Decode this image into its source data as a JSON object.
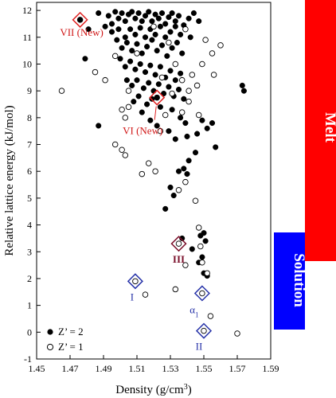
{
  "chart_data": {
    "type": "scatter",
    "xlabel": "Density (g/cm",
    "xlabel_sup": "3",
    "xlabel_end": ")",
    "ylabel": "Relative lattice energy (kJ/mol)",
    "xlim": [
      1.45,
      1.59
    ],
    "ylim": [
      -1,
      12.3
    ],
    "x_ticks": [
      "1.45",
      "1.47",
      "1.49",
      "1.51",
      "1.53",
      "1.55",
      "1.57",
      "1.59"
    ],
    "x_tick_values": [
      1.45,
      1.47,
      1.49,
      1.51,
      1.53,
      1.55,
      1.57,
      1.59
    ],
    "y_ticks": [
      "-1",
      "0",
      "1",
      "2",
      "3",
      "4",
      "5",
      "6",
      "7",
      "8",
      "9",
      "10",
      "11",
      "12"
    ],
    "y_tick_values": [
      -1,
      0,
      1,
      2,
      3,
      4,
      5,
      6,
      7,
      8,
      9,
      10,
      11,
      12
    ],
    "grid": false,
    "legend_position": "bottom-left",
    "series": [
      {
        "name": "Z’ = 2",
        "marker": "filled-circle",
        "points": [
          [
            1.487,
            11.9
          ],
          [
            1.493,
            11.8
          ],
          [
            1.497,
            11.95
          ],
          [
            1.499,
            11.7
          ],
          [
            1.501,
            11.9
          ],
          [
            1.503,
            11.6
          ],
          [
            1.505,
            11.85
          ],
          [
            1.507,
            11.95
          ],
          [
            1.509,
            11.7
          ],
          [
            1.511,
            11.9
          ],
          [
            1.513,
            11.6
          ],
          [
            1.515,
            11.8
          ],
          [
            1.517,
            11.95
          ],
          [
            1.519,
            11.6
          ],
          [
            1.521,
            11.85
          ],
          [
            1.523,
            11.7
          ],
          [
            1.525,
            11.9
          ],
          [
            1.527,
            11.5
          ],
          [
            1.529,
            11.75
          ],
          [
            1.531,
            11.9
          ],
          [
            1.533,
            11.6
          ],
          [
            1.535,
            11.8
          ],
          [
            1.538,
            11.45
          ],
          [
            1.541,
            11.7
          ],
          [
            1.544,
            11.9
          ],
          [
            1.547,
            11.6
          ],
          [
            1.491,
            11.4
          ],
          [
            1.495,
            11.2
          ],
          [
            1.499,
            11.3
          ],
          [
            1.503,
            11.0
          ],
          [
            1.506,
            11.3
          ],
          [
            1.509,
            11.1
          ],
          [
            1.512,
            11.35
          ],
          [
            1.515,
            11.0
          ],
          [
            1.518,
            11.3
          ],
          [
            1.521,
            11.1
          ],
          [
            1.524,
            11.4
          ],
          [
            1.527,
            11.0
          ],
          [
            1.53,
            11.2
          ],
          [
            1.533,
            11.4
          ],
          [
            1.536,
            11.1
          ],
          [
            1.539,
            11.3
          ],
          [
            1.498,
            10.9
          ],
          [
            1.501,
            10.6
          ],
          [
            1.504,
            10.8
          ],
          [
            1.507,
            10.5
          ],
          [
            1.51,
            10.75
          ],
          [
            1.513,
            10.4
          ],
          [
            1.516,
            10.65
          ],
          [
            1.519,
            10.9
          ],
          [
            1.522,
            10.5
          ],
          [
            1.525,
            10.7
          ],
          [
            1.528,
            10.3
          ],
          [
            1.531,
            10.6
          ],
          [
            1.534,
            10.8
          ],
          [
            1.537,
            10.4
          ],
          [
            1.5,
            10.2
          ],
          [
            1.503,
            9.9
          ],
          [
            1.506,
            10.1
          ],
          [
            1.509,
            9.8
          ],
          [
            1.512,
            10.0
          ],
          [
            1.515,
            9.7
          ],
          [
            1.518,
            9.95
          ],
          [
            1.521,
            9.6
          ],
          [
            1.524,
            9.9
          ],
          [
            1.527,
            9.5
          ],
          [
            1.53,
            9.75
          ],
          [
            1.533,
            9.4
          ],
          [
            1.536,
            9.65
          ],
          [
            1.504,
            9.4
          ],
          [
            1.507,
            9.2
          ],
          [
            1.51,
            9.4
          ],
          [
            1.514,
            9.1
          ],
          [
            1.517,
            9.3
          ],
          [
            1.52,
            9.0
          ],
          [
            1.523,
            9.25
          ],
          [
            1.526,
            8.9
          ],
          [
            1.529,
            9.15
          ],
          [
            1.532,
            8.8
          ],
          [
            1.535,
            9.05
          ],
          [
            1.538,
            8.7
          ],
          [
            1.508,
            8.6
          ],
          [
            1.511,
            8.8
          ],
          [
            1.516,
            8.5
          ],
          [
            1.519,
            8.7
          ],
          [
            1.524,
            8.4
          ],
          [
            1.531,
            8.3
          ],
          [
            1.536,
            8.0
          ],
          [
            1.539,
            7.8
          ],
          [
            1.513,
            8.2
          ],
          [
            1.518,
            7.9
          ],
          [
            1.522,
            7.7
          ],
          [
            1.529,
            7.5
          ],
          [
            1.533,
            7.2
          ],
          [
            1.54,
            7.3
          ],
          [
            1.546,
            7.4
          ],
          [
            1.549,
            7.9
          ],
          [
            1.552,
            7.6
          ],
          [
            1.555,
            7.8
          ],
          [
            1.557,
            6.9
          ],
          [
            1.545,
            6.7
          ],
          [
            1.541,
            6.4
          ],
          [
            1.538,
            6.1
          ],
          [
            1.535,
            6.0
          ],
          [
            1.54,
            5.9
          ],
          [
            1.53,
            5.4
          ],
          [
            1.532,
            5.1
          ],
          [
            1.527,
            4.6
          ],
          [
            1.537,
            3.5
          ],
          [
            1.543,
            3.1
          ],
          [
            1.548,
            3.6
          ],
          [
            1.55,
            3.7
          ],
          [
            1.551,
            3.4
          ],
          [
            1.547,
            2.6
          ],
          [
            1.549,
            2.8
          ],
          [
            1.55,
            2.2
          ],
          [
            1.552,
            2.1
          ],
          [
            1.479,
            10.2
          ],
          [
            1.481,
            11.3
          ],
          [
            1.573,
            9.2
          ],
          [
            1.574,
            9.0
          ],
          [
            1.487,
            7.7
          ],
          [
            1.495,
            11.5
          ],
          [
            1.542,
            11.0
          ]
        ]
      },
      {
        "name": "Z’ = 1",
        "marker": "open-circle",
        "points": [
          [
            1.465,
            9.0
          ],
          [
            1.485,
            9.7
          ],
          [
            1.491,
            9.4
          ],
          [
            1.497,
            10.3
          ],
          [
            1.501,
            8.3
          ],
          [
            1.503,
            8.0
          ],
          [
            1.505,
            8.4
          ],
          [
            1.497,
            7.0
          ],
          [
            1.501,
            6.8
          ],
          [
            1.503,
            6.6
          ],
          [
            1.517,
            6.3
          ],
          [
            1.521,
            6.0
          ],
          [
            1.513,
            5.9
          ],
          [
            1.535,
            5.3
          ],
          [
            1.539,
            5.6
          ],
          [
            1.545,
            4.9
          ],
          [
            1.537,
            8.2
          ],
          [
            1.541,
            8.6
          ],
          [
            1.543,
            9.6
          ],
          [
            1.541,
            9.0
          ],
          [
            1.546,
            9.2
          ],
          [
            1.549,
            10.0
          ],
          [
            1.551,
            10.9
          ],
          [
            1.555,
            10.4
          ],
          [
            1.539,
            11.3
          ],
          [
            1.537,
            9.4
          ],
          [
            1.531,
            8.9
          ],
          [
            1.547,
            8.1
          ],
          [
            1.56,
            10.7
          ],
          [
            1.556,
            9.6
          ],
          [
            1.547,
            3.9
          ],
          [
            1.548,
            3.2
          ],
          [
            1.549,
            2.6
          ],
          [
            1.539,
            2.5
          ],
          [
            1.552,
            2.2
          ],
          [
            1.554,
            0.6
          ],
          [
            1.57,
            -0.05
          ],
          [
            1.533,
            1.6
          ],
          [
            1.515,
            1.4
          ],
          [
            1.524,
            7.5
          ],
          [
            1.527,
            8.1
          ],
          [
            1.505,
            9.0
          ],
          [
            1.51,
            10.4
          ],
          [
            1.52,
            11.4
          ],
          [
            1.529,
            10.8
          ],
          [
            1.533,
            10.0
          ],
          [
            1.525,
            9.5
          ]
        ]
      }
    ],
    "annotations": [
      {
        "label": "VII (New)",
        "x": 1.476,
        "y": 11.65,
        "color": "red"
      },
      {
        "label": "VI (New)",
        "x": 1.522,
        "y": 8.75,
        "color": "red"
      },
      {
        "label": "III",
        "x": 1.535,
        "y": 3.3,
        "color": "darkred"
      },
      {
        "label": "I",
        "x": 1.509,
        "y": 1.9,
        "color": "blue"
      },
      {
        "label": "α",
        "label_sub": "1",
        "x": 1.549,
        "y": 1.45,
        "color": "blue"
      },
      {
        "label": "II",
        "x": 1.55,
        "y": 0.05,
        "color": "blue"
      }
    ]
  },
  "bands": {
    "melt_label": "Melt",
    "solution_label": "Solution",
    "melt_color": "#ff0000",
    "solution_color": "#0000ff"
  },
  "legend": {
    "filled_label": "Z’ = 2",
    "open_label": "Z’ = 1"
  }
}
